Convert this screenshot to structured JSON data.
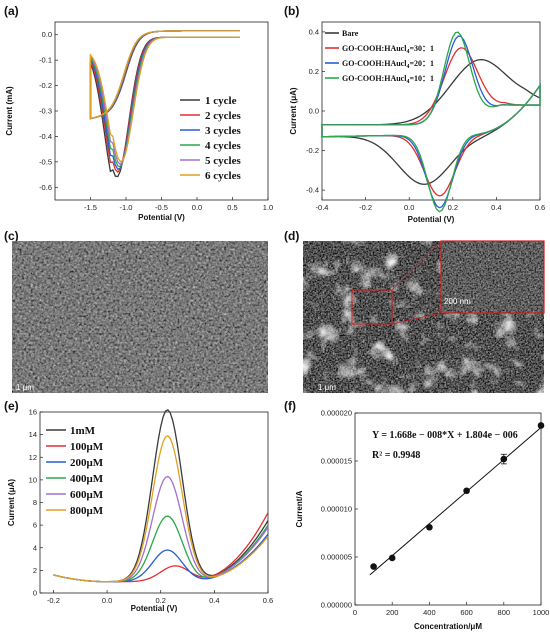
{
  "chart_data": [
    {
      "panel": "(a)",
      "type": "line",
      "xlabel": "Potential (V)",
      "ylabel": "Current (mA)",
      "xlim": [
        -2.0,
        1.0
      ],
      "ylim": [
        -0.65,
        0.05
      ],
      "xticks": [
        "-1.5",
        "-1.0",
        "-0.5",
        "0.0",
        "0.5",
        "1.0"
      ],
      "yticks": [
        "0.0",
        "-0.1",
        "-0.2",
        "-0.3",
        "-0.4",
        "-0.5",
        "-0.6"
      ],
      "legend_position": "bottom-right",
      "series": [
        {
          "name": "1 cycle",
          "color": "#3a3a3a",
          "peak_current": -0.55
        },
        {
          "name": "2 cycles",
          "color": "#e03030",
          "peak_current": -0.53
        },
        {
          "name": "3 cycles",
          "color": "#2a5bd7",
          "peak_current": -0.52
        },
        {
          "name": "4 cycles",
          "color": "#2aa84a",
          "peak_current": -0.51
        },
        {
          "name": "5 cycles",
          "color": "#a070d0",
          "peak_current": -0.5
        },
        {
          "name": "6 cycles",
          "color": "#e0a020",
          "peak_current": -0.49
        }
      ]
    },
    {
      "panel": "(b)",
      "type": "line",
      "xlabel": "Potential (V)",
      "ylabel": "Current (μA)",
      "xlim": [
        -0.4,
        0.6
      ],
      "ylim": [
        -0.45,
        0.45
      ],
      "xticks": [
        "-0.4",
        "-0.2",
        "0.0",
        "0.2",
        "0.4",
        "0.6"
      ],
      "yticks": [
        "0.4",
        "0.2",
        "0.0",
        "-0.2",
        "-0.4"
      ],
      "legend_position": "top-left",
      "series": [
        {
          "name": "Bare",
          "color": "#3a3a3a",
          "peak_current": 0.28
        },
        {
          "name_main": "GO-COOH:HAucl",
          "name_sub": "4",
          "name_rest": "=30：1",
          "color": "#e03030",
          "peak_current": 0.34
        },
        {
          "name_main": "GO-COOH:HAucl",
          "name_sub": "4",
          "name_rest": "=20：1",
          "color": "#2a5bd7",
          "peak_current": 0.4
        },
        {
          "name_main": "GO-COOH:HAucl",
          "name_sub": "4",
          "name_rest": "=10：1",
          "color": "#2aa84a",
          "peak_current": 0.42
        }
      ]
    },
    {
      "panel": "(c)",
      "type": "image",
      "scale_bar": "1 μm"
    },
    {
      "panel": "(d)",
      "type": "image",
      "scale_bar": "1 μm",
      "inset_scale_bar": "200 nm"
    },
    {
      "panel": "(e)",
      "type": "line",
      "xlabel": "Potential (V)",
      "ylabel": "Current (μA)",
      "xlim": [
        -0.25,
        0.6
      ],
      "ylim": [
        0,
        16
      ],
      "xticks": [
        "-0.2",
        "0.0",
        "0.2",
        "0.4",
        "0.6"
      ],
      "yticks": [
        "0",
        "2",
        "4",
        "6",
        "8",
        "10",
        "12",
        "14",
        "16"
      ],
      "legend_position": "top-left",
      "series": [
        {
          "name": "1mM",
          "color": "#3a3a3a",
          "peak_current": 16.2
        },
        {
          "name": "100μM",
          "color": "#e03030",
          "peak_current": 2.4
        },
        {
          "name": "200μM",
          "color": "#2a5bd7",
          "peak_current": 3.8
        },
        {
          "name": "400μM",
          "color": "#2aa84a",
          "peak_current": 6.8
        },
        {
          "name": "600μM",
          "color": "#a070d0",
          "peak_current": 10.3
        },
        {
          "name": "800μM",
          "color": "#e0a020",
          "peak_current": 13.9
        }
      ]
    },
    {
      "panel": "(f)",
      "type": "scatter",
      "xlabel": "Concentration/μM",
      "ylabel": "Current/A",
      "xlim": [
        0,
        1000
      ],
      "ylim": [
        0,
        2e-05
      ],
      "xticks": [
        "0",
        "200",
        "400",
        "600",
        "800",
        "1000"
      ],
      "yticks": [
        "0.000000",
        "0.000005",
        "0.000010",
        "0.000015",
        "0.000020"
      ],
      "equation": "Y = 1.668e − 008*X + 1.804e − 006",
      "r2": "R² = 0.9948",
      "fit": {
        "slope": 1.668e-08,
        "intercept": 1.804e-06
      },
      "points": [
        {
          "x": 100,
          "y": 4e-06
        },
        {
          "x": 200,
          "y": 4.9e-06
        },
        {
          "x": 400,
          "y": 8.1e-06
        },
        {
          "x": 600,
          "y": 1.19e-05
        },
        {
          "x": 800,
          "y": 1.52e-05,
          "err": 5e-07
        },
        {
          "x": 1000,
          "y": 1.87e-05
        }
      ]
    }
  ]
}
